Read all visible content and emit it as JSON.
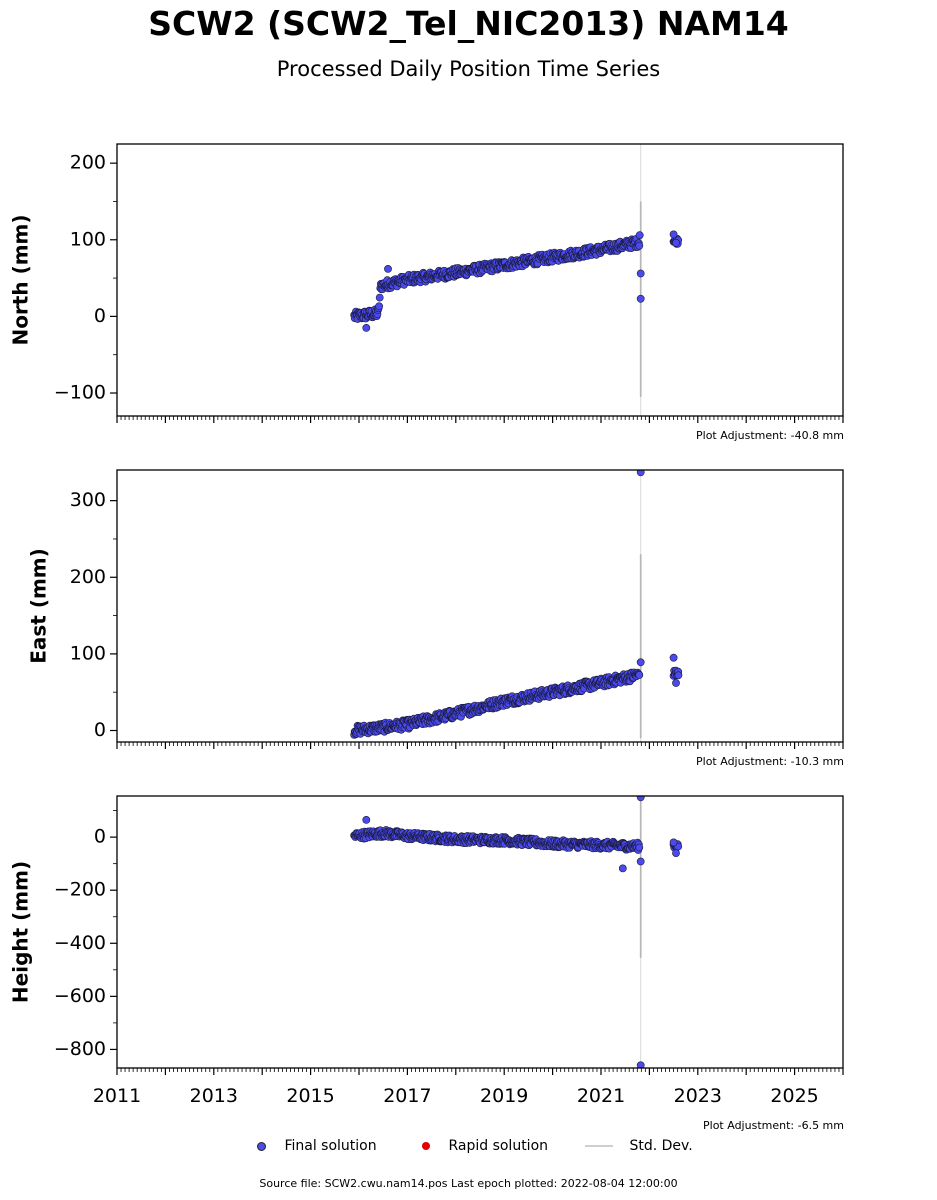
{
  "title": "SCW2 (SCW2_Tel_NIC2013) NAM14",
  "subtitle": "Processed Daily Position Time Series",
  "colors": {
    "final": "#4a4aee",
    "rapid": "#e00000",
    "std_dev": "#c8c8c8",
    "marker_edge": "#1a1a3a"
  },
  "legend": {
    "final": "Final solution",
    "rapid": "Rapid solution",
    "std": "Std. Dev."
  },
  "footer": "Source file: SCW2.cwu.nam14.pos  Last epoch plotted: 2022-08-04 12:00:00",
  "chart_data": [
    {
      "type": "scatter",
      "ylabel": "North (mm)",
      "adjustment": "Plot Adjustment: -40.8 mm",
      "xlim": [
        2011,
        2026
      ],
      "ylim": [
        -130,
        225
      ],
      "yticks": [
        200,
        100,
        0,
        -100
      ],
      "trend": [
        [
          2015.9,
          0
        ],
        [
          2016.4,
          4
        ],
        [
          2016.45,
          40
        ],
        [
          2017,
          48
        ],
        [
          2018,
          57
        ],
        [
          2019,
          67
        ],
        [
          2020,
          77
        ],
        [
          2021,
          87
        ],
        [
          2021.8,
          97
        ]
      ],
      "outliers": [
        [
          2016.15,
          -15
        ],
        [
          2016.6,
          62
        ],
        [
          2021.8,
          106
        ],
        [
          2021.82,
          56
        ],
        [
          2021.82,
          23
        ],
        [
          2022.5,
          107
        ],
        [
          2022.55,
          96
        ]
      ],
      "error_bar": {
        "x": 2021.82,
        "low": -105,
        "high": 150
      },
      "series": [
        {
          "name": "Final solution",
          "start": 2015.9,
          "end": 2021.8,
          "gap_end": 2022.5,
          "last": 2022.6
        }
      ]
    },
    {
      "type": "scatter",
      "ylabel": "East (mm)",
      "adjustment": "Plot Adjustment: -10.3 mm",
      "xlim": [
        2011,
        2026
      ],
      "ylim": [
        -15,
        340
      ],
      "yticks": [
        300,
        200,
        100,
        0
      ],
      "trend": [
        [
          2015.9,
          0
        ],
        [
          2016.5,
          4
        ],
        [
          2017,
          8
        ],
        [
          2018,
          22
        ],
        [
          2019,
          38
        ],
        [
          2020,
          50
        ],
        [
          2021,
          62
        ],
        [
          2021.8,
          73
        ]
      ],
      "outliers": [
        [
          2021.82,
          337
        ],
        [
          2021.82,
          89
        ],
        [
          2022.5,
          95
        ],
        [
          2022.55,
          62
        ],
        [
          2022.6,
          72
        ]
      ],
      "error_bar": {
        "x": 2021.82,
        "low": -10,
        "high": 230
      },
      "series": [
        {
          "name": "Final solution",
          "start": 2015.9,
          "end": 2021.8,
          "gap_end": 2022.5,
          "last": 2022.6
        }
      ]
    },
    {
      "type": "scatter",
      "ylabel": "Height (mm)",
      "adjustment": "Plot Adjustment: -6.5 mm",
      "xlim": [
        2011,
        2026
      ],
      "ylim": [
        -870,
        155
      ],
      "xticks": [
        2011,
        2013,
        2015,
        2017,
        2019,
        2021,
        2023,
        2025
      ],
      "yticks": [
        0,
        -200,
        -400,
        -600,
        -800
      ],
      "trend": [
        [
          2015.9,
          5
        ],
        [
          2016.5,
          15
        ],
        [
          2017,
          5
        ],
        [
          2018,
          -8
        ],
        [
          2019,
          -12
        ],
        [
          2020,
          -25
        ],
        [
          2021,
          -30
        ],
        [
          2021.8,
          -35
        ]
      ],
      "outliers": [
        [
          2016.15,
          65
        ],
        [
          2021.45,
          -118
        ],
        [
          2021.82,
          150
        ],
        [
          2021.82,
          -92
        ],
        [
          2021.82,
          -860
        ],
        [
          2022.5,
          -20
        ],
        [
          2022.55,
          -60
        ]
      ],
      "error_bar": {
        "x": 2021.82,
        "low": -455,
        "high": 150
      },
      "series": [
        {
          "name": "Final solution",
          "start": 2015.9,
          "end": 2021.8,
          "gap_end": 2022.5,
          "last": 2022.6
        }
      ]
    }
  ]
}
